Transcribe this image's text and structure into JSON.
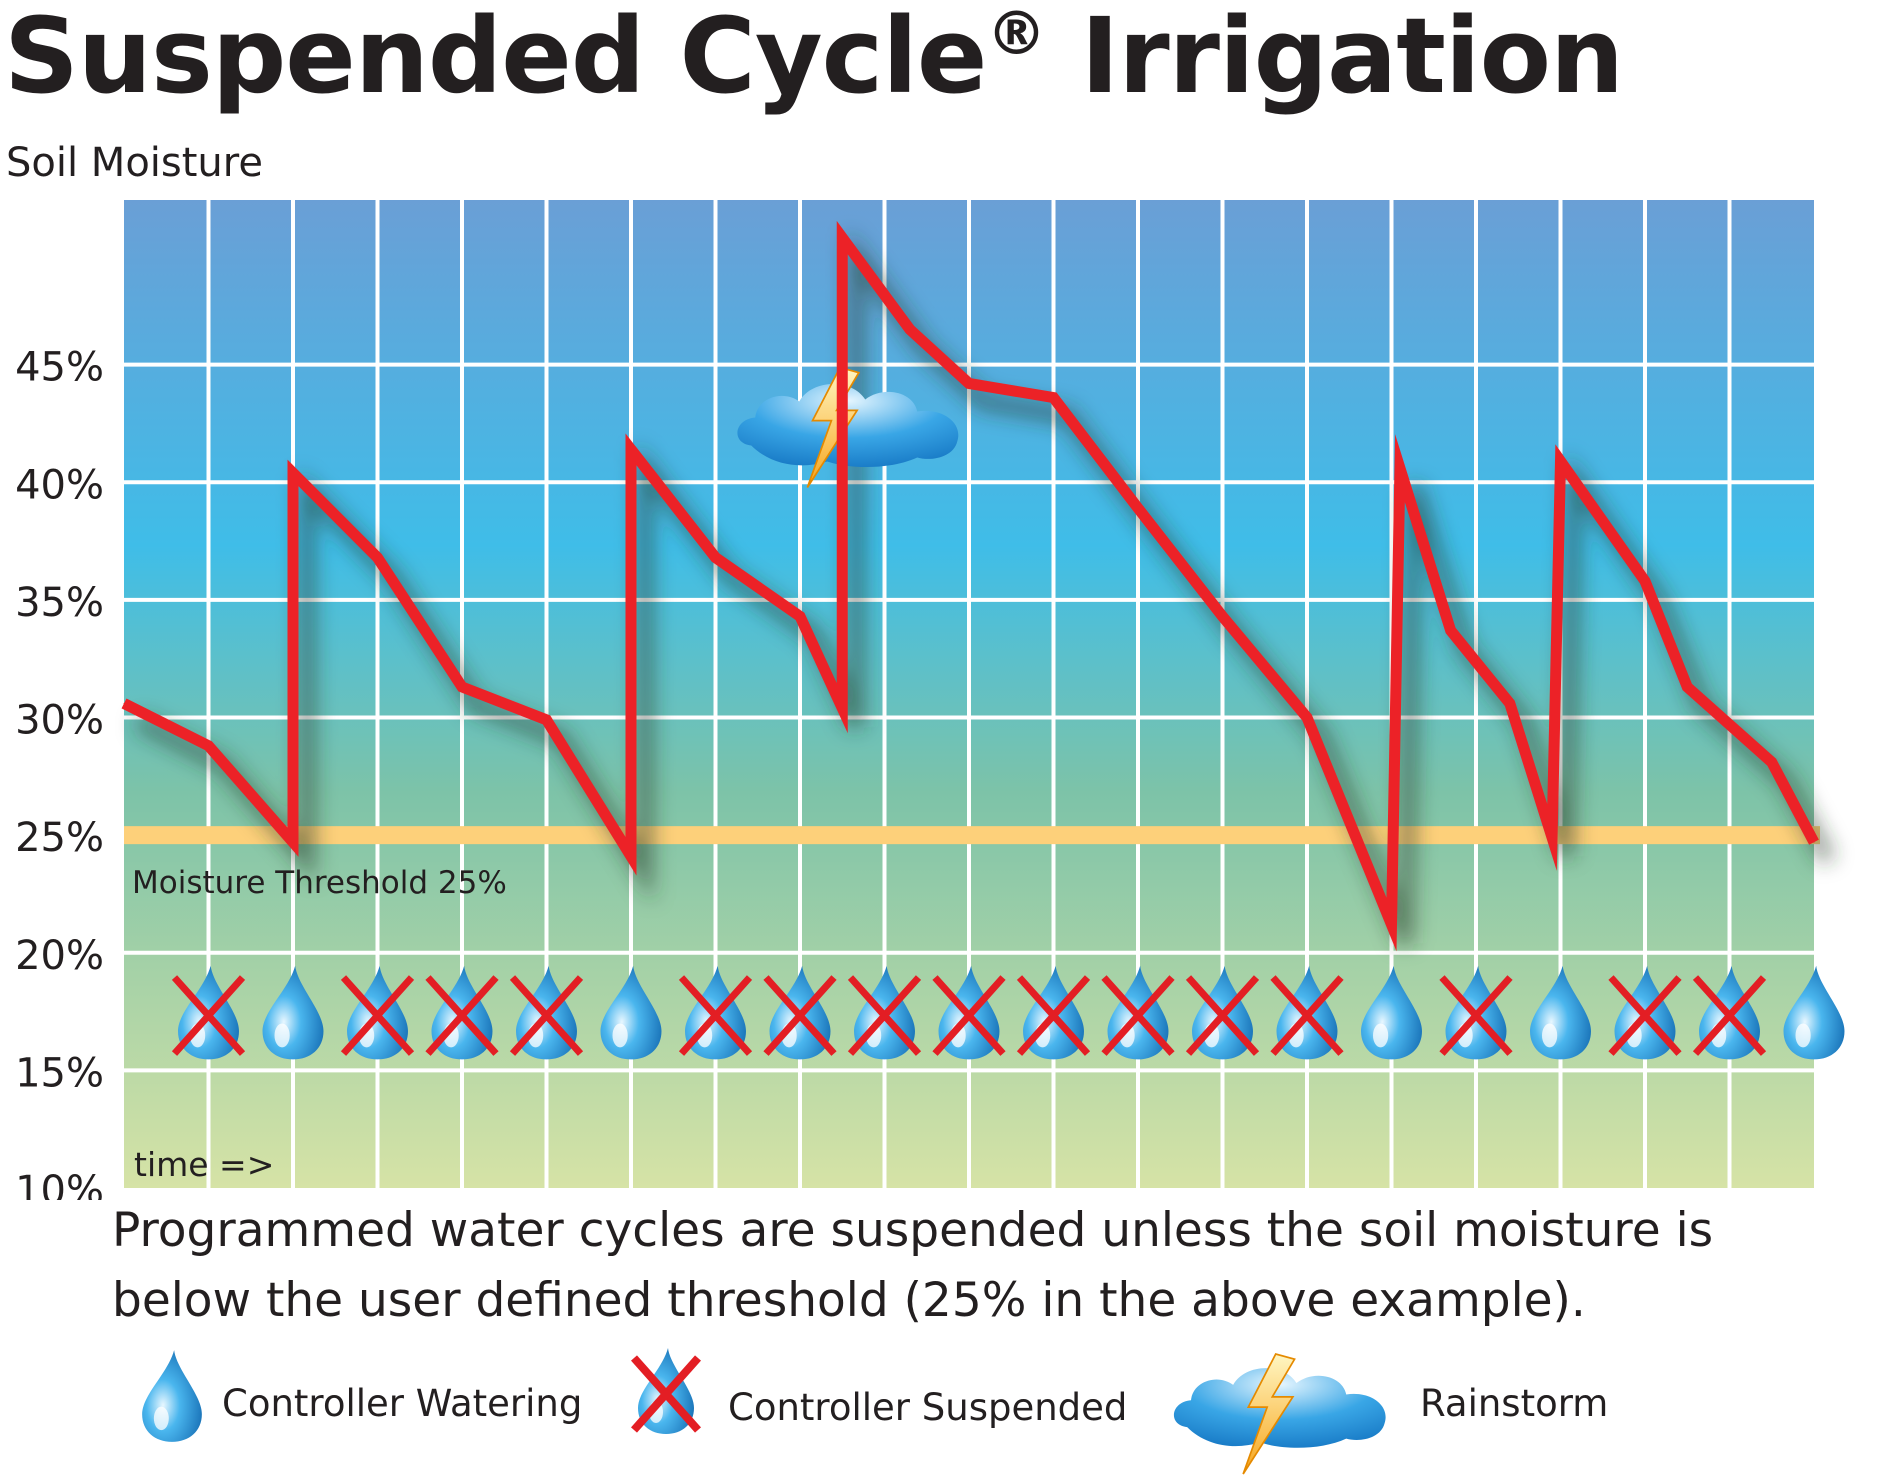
{
  "title": "Suspended Cycle",
  "title_mark": "®",
  "title_rest": "Irrigation",
  "caption_line1": "Programmed water cycles are suspended unless the soil moisture is",
  "caption_line2": "below the user defined threshold (25% in the above example).",
  "legend": {
    "watering": "Controller Watering",
    "suspended": "Controller Suspended",
    "rainstorm": "Rainstorm"
  },
  "colors": {
    "line": "#ec2227",
    "threshold": "#fdd07a",
    "grid": "#ffffff",
    "bg_top": "#6a9fd6",
    "bg_mid": "#3fbde8",
    "bg_low": "#7dc3a8",
    "bg_bottom": "#d6e3a6",
    "drop": "#1a8fd8",
    "cross": "#e31e24",
    "lightning": "#fdb515"
  },
  "chart_data": {
    "type": "line",
    "ylabel": "Soil Moisture",
    "xlabel": "time =>",
    "ylim": [
      10,
      52
    ],
    "yticks": [
      "10%",
      "15%",
      "20%",
      "25%",
      "30%",
      "35%",
      "40%",
      "45%"
    ],
    "ytick_values": [
      10,
      15,
      20,
      25,
      30,
      35,
      40,
      45
    ],
    "grid": true,
    "x": [
      0,
      1,
      2,
      2,
      3,
      4,
      5,
      6,
      6,
      7,
      8,
      8.5,
      8.5,
      9.3,
      10,
      11,
      12,
      13,
      14,
      15,
      15.1,
      15.7,
      16.4,
      16.9,
      17,
      18,
      18.5,
      19.5,
      20
    ],
    "y": [
      30.6,
      28.8,
      24.7,
      40.4,
      36.8,
      31.3,
      29.9,
      24.1,
      41.4,
      36.8,
      34.3,
      30.4,
      50.4,
      46.5,
      44.2,
      43.6,
      38.9,
      34.3,
      30.0,
      21.2,
      40.6,
      33.7,
      30.6,
      24.9,
      40.9,
      35.8,
      31.3,
      28.1,
      24.7
    ],
    "threshold": {
      "value": 25,
      "label": "Moisture Threshold 25%"
    },
    "events": [
      "suspended",
      "watering",
      "suspended",
      "suspended",
      "suspended",
      "watering",
      "suspended",
      "suspended",
      "suspended",
      "suspended",
      "suspended",
      "suspended",
      "suspended",
      "suspended",
      "watering",
      "suspended",
      "watering",
      "suspended",
      "suspended",
      "watering"
    ],
    "events_level": 17.5,
    "rainstorm_at": 8.5
  }
}
